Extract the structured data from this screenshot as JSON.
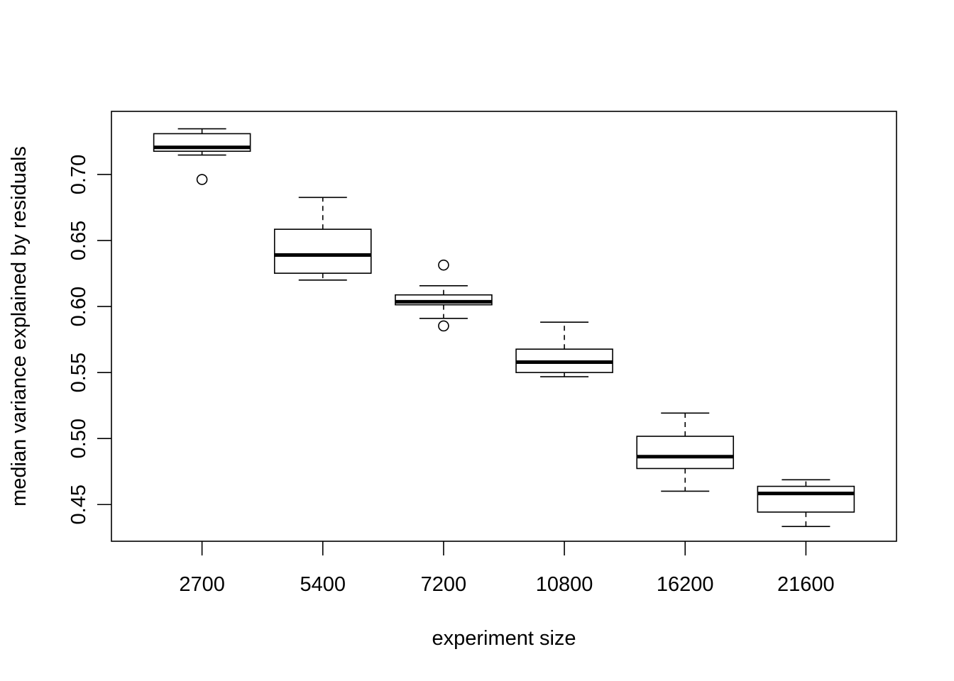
{
  "chart_data": {
    "type": "boxplot",
    "title": "",
    "xlabel": "experiment size",
    "ylabel": "median variance explained by residuals",
    "categories": [
      "2700",
      "5400",
      "7200",
      "10800",
      "16200",
      "21600"
    ],
    "boxes": [
      {
        "category": "2700",
        "whisker_low": 0.7147,
        "q1": 0.7176,
        "median": 0.7205,
        "q3": 0.7309,
        "whisker_high": 0.7346,
        "outliers": [
          0.6962
        ]
      },
      {
        "category": "5400",
        "whisker_low": 0.62,
        "q1": 0.6252,
        "median": 0.639,
        "q3": 0.6585,
        "whisker_high": 0.6826,
        "outliers": []
      },
      {
        "category": "7200",
        "whisker_low": 0.591,
        "q1": 0.6013,
        "median": 0.6036,
        "q3": 0.6088,
        "whisker_high": 0.6157,
        "outliers": [
          0.6314,
          0.5853
        ]
      },
      {
        "category": "10800",
        "whisker_low": 0.5468,
        "q1": 0.55,
        "median": 0.5579,
        "q3": 0.5677,
        "whisker_high": 0.5881,
        "outliers": []
      },
      {
        "category": "16200",
        "whisker_low": 0.4601,
        "q1": 0.4773,
        "median": 0.4863,
        "q3": 0.5017,
        "whisker_high": 0.5193,
        "outliers": []
      },
      {
        "category": "21600",
        "whisker_low": 0.4334,
        "q1": 0.4443,
        "median": 0.4584,
        "q3": 0.4638,
        "whisker_high": 0.4688,
        "outliers": []
      }
    ],
    "yticks": [
      0.45,
      0.5,
      0.55,
      0.6,
      0.65,
      0.7
    ],
    "ytick_labels": [
      "0.45",
      "0.50",
      "0.55",
      "0.60",
      "0.65",
      "0.70"
    ],
    "ylim": [
      0.4222,
      0.7478
    ],
    "xlim": [
      0.25,
      6.75
    ],
    "grid": false,
    "legend": false
  }
}
